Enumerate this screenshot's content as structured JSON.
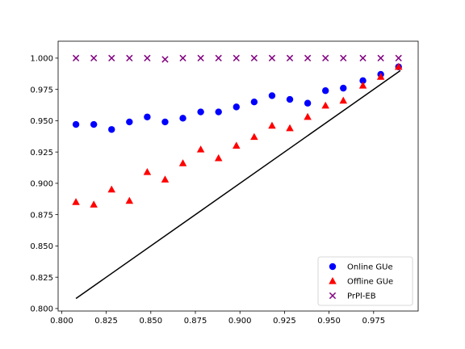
{
  "chart_data": {
    "type": "scatter",
    "title": "",
    "xlabel": "",
    "ylabel": "",
    "xlim": [
      0.798,
      1.0
    ],
    "ylim": [
      0.798,
      1.0135
    ],
    "xticks": [
      "0.800",
      "0.825",
      "0.850",
      "0.875",
      "0.900",
      "0.925",
      "0.950",
      "0.975"
    ],
    "yticks": [
      "0.800",
      "0.825",
      "0.850",
      "0.875",
      "0.900",
      "0.925",
      "0.950",
      "0.975",
      "1.000"
    ],
    "grid": false,
    "legend_position": "lower-right",
    "series": [
      {
        "name": "Online GUe",
        "marker": "circle",
        "color": "#0000ff",
        "x": [
          0.808,
          0.818,
          0.828,
          0.838,
          0.848,
          0.858,
          0.868,
          0.878,
          0.888,
          0.898,
          0.908,
          0.918,
          0.928,
          0.938,
          0.948,
          0.958,
          0.969,
          0.979,
          0.989
        ],
        "y": [
          0.947,
          0.947,
          0.943,
          0.949,
          0.953,
          0.949,
          0.952,
          0.957,
          0.957,
          0.961,
          0.965,
          0.97,
          0.967,
          0.964,
          0.974,
          0.976,
          0.982,
          0.987,
          0.993
        ]
      },
      {
        "name": "Offline GUe",
        "marker": "triangle",
        "color": "#ff0000",
        "x": [
          0.808,
          0.818,
          0.828,
          0.838,
          0.848,
          0.858,
          0.868,
          0.878,
          0.888,
          0.898,
          0.908,
          0.918,
          0.928,
          0.938,
          0.948,
          0.958,
          0.969,
          0.979,
          0.989
        ],
        "y": [
          0.885,
          0.883,
          0.895,
          0.886,
          0.909,
          0.903,
          0.916,
          0.927,
          0.92,
          0.93,
          0.937,
          0.946,
          0.944,
          0.953,
          0.962,
          0.966,
          0.978,
          0.985,
          0.993
        ]
      },
      {
        "name": "PrPl-EB",
        "marker": "x",
        "color": "#800080",
        "x": [
          0.808,
          0.818,
          0.828,
          0.838,
          0.848,
          0.858,
          0.868,
          0.878,
          0.888,
          0.898,
          0.908,
          0.918,
          0.928,
          0.938,
          0.948,
          0.958,
          0.969,
          0.979,
          0.989
        ],
        "y": [
          1.0,
          1.0,
          1.0,
          1.0,
          1.0,
          0.999,
          1.0,
          1.0,
          1.0,
          1.0,
          1.0,
          1.0,
          1.0,
          1.0,
          1.0,
          1.0,
          1.0,
          1.0,
          1.0
        ]
      }
    ],
    "reference_line": {
      "color": "#000000",
      "x": [
        0.808,
        0.99
      ],
      "y": [
        0.808,
        0.99
      ]
    }
  }
}
